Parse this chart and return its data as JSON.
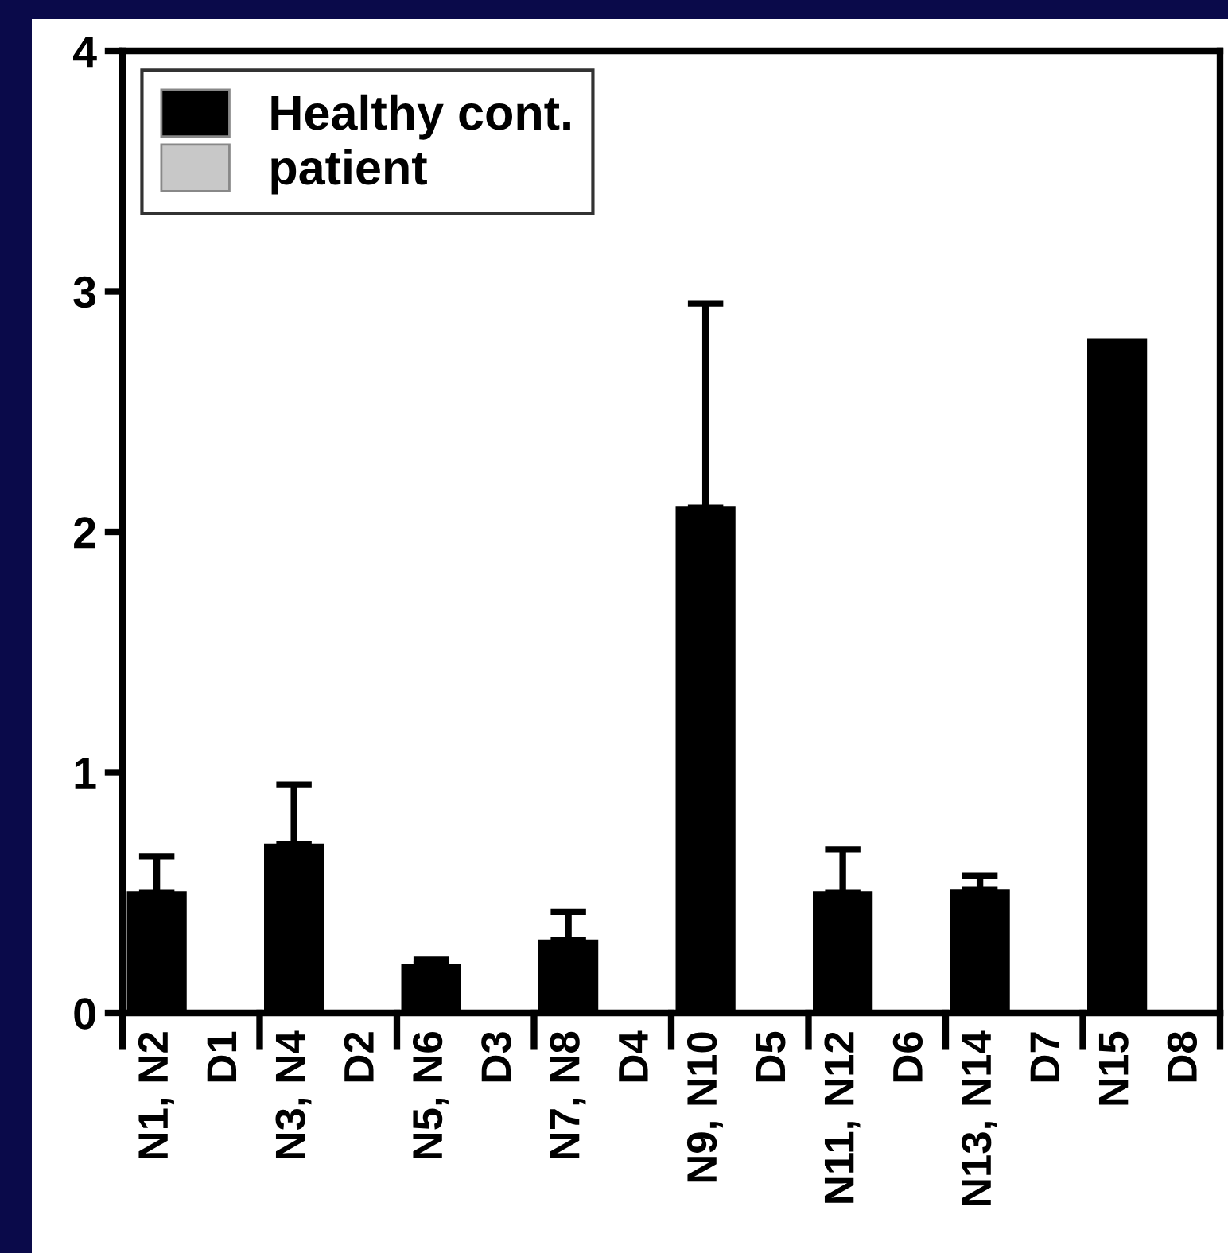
{
  "chart_data": {
    "type": "bar",
    "categories": [
      "N1, N2",
      "D1",
      "N3, N4",
      "D2",
      "N5, N6",
      "D3",
      "N7, N8",
      "D4",
      "N9, N10",
      "D5",
      "N11, N12",
      "D6",
      "N13, N14",
      "D7",
      "N15",
      "D8"
    ],
    "series": [
      {
        "name": "Healthy cont.",
        "color": "#000000",
        "values": [
          0.5,
          null,
          0.7,
          null,
          0.2,
          null,
          0.3,
          null,
          2.1,
          null,
          0.5,
          null,
          0.51,
          null,
          2.8,
          null
        ],
        "errors": [
          [
            0.5,
            0.65
          ],
          null,
          [
            0.7,
            0.95
          ],
          null,
          [
            0.2,
            0.22
          ],
          null,
          [
            0.3,
            0.42
          ],
          null,
          [
            2.1,
            2.95
          ],
          null,
          [
            0.5,
            0.68
          ],
          null,
          [
            0.51,
            0.57
          ],
          null,
          null,
          null
        ]
      },
      {
        "name": "patient",
        "color": "#c8c8c8",
        "values": [
          null,
          0,
          null,
          0,
          null,
          0,
          null,
          0,
          null,
          0,
          null,
          0,
          null,
          0,
          null,
          0
        ]
      }
    ],
    "ylim": [
      0,
      4
    ],
    "yticks": [
      0,
      1,
      2,
      3,
      4
    ],
    "grid": false,
    "legend": "top left"
  }
}
